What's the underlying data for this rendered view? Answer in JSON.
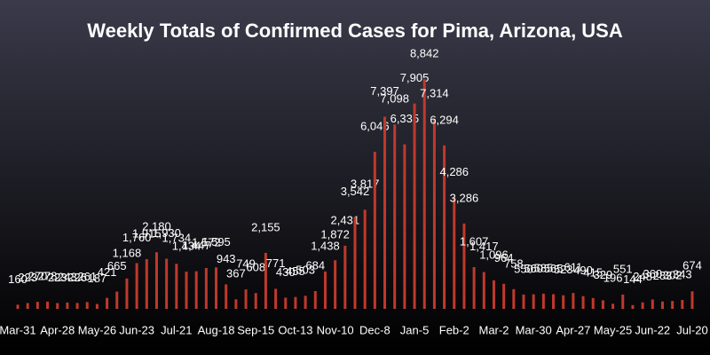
{
  "chart_data": {
    "type": "bar",
    "title": "Weekly Totals of Confirmed Cases for Pima, Arizona, USA",
    "categories": [
      "Mar-31",
      null,
      null,
      null,
      "Apr-28",
      null,
      null,
      null,
      "May-26",
      null,
      null,
      null,
      "Jun-23",
      null,
      null,
      null,
      "Jul-21",
      null,
      null,
      null,
      "Aug-18",
      null,
      null,
      null,
      "Sep-15",
      null,
      null,
      null,
      "Oct-13",
      null,
      null,
      null,
      "Nov-10",
      null,
      null,
      null,
      "Dec-8",
      null,
      null,
      null,
      "Jan-5",
      null,
      null,
      null,
      "Feb-2",
      null,
      null,
      null,
      "Mar-2",
      null,
      null,
      null,
      "Mar-30",
      null,
      null,
      null,
      "Apr-27",
      null,
      null,
      null,
      "May-25",
      null,
      null,
      null,
      "Jun-22",
      null,
      null,
      null,
      "Jul-20"
    ],
    "values": [
      160,
      223,
      270,
      278,
      223,
      243,
      226,
      261,
      187,
      421,
      665,
      1168,
      1760,
      1915,
      2180,
      1930,
      1734,
      1434,
      1447,
      1572,
      1595,
      943,
      367,
      749,
      608,
      2155,
      771,
      430,
      455,
      503,
      684,
      1438,
      1872,
      2431,
      3542,
      3817,
      6046,
      7397,
      7098,
      6335,
      7905,
      8842,
      7314,
      6294,
      4286,
      3286,
      1607,
      1417,
      1096,
      964,
      758,
      550,
      560,
      585,
      565,
      523,
      611,
      490,
      415,
      329,
      196,
      551,
      144,
      248,
      360,
      283,
      302,
      343,
      674
    ],
    "value_labels": [
      "160",
      "223",
      "270",
      "278",
      "223",
      "243",
      "226",
      "261",
      "187",
      "421",
      "665",
      "1,168",
      "1,760",
      "1,915",
      "2,180",
      "1,930",
      "1,734",
      "1,434",
      "1,447",
      "1,572",
      "1,595",
      "943",
      "367",
      "749",
      "608",
      "2,155",
      "771",
      "430",
      "455",
      "503",
      "684",
      "1,438",
      "1,872",
      "2,431",
      "3,542",
      "3,817",
      "6,046",
      "7,397",
      "7,098",
      "6,335",
      "7,905",
      "8,842",
      "7,314",
      "6,294",
      "4,286",
      "3,286",
      "1,607",
      "1,417",
      "1,096",
      "964",
      "758",
      "550",
      "560",
      "585",
      "565",
      "523",
      "611",
      "490",
      "415",
      "329",
      "196",
      "551",
      "144",
      "248",
      "360",
      "283",
      "302",
      "343",
      "674"
    ],
    "color": "#c0392b",
    "ylim": [
      0,
      9500
    ]
  }
}
